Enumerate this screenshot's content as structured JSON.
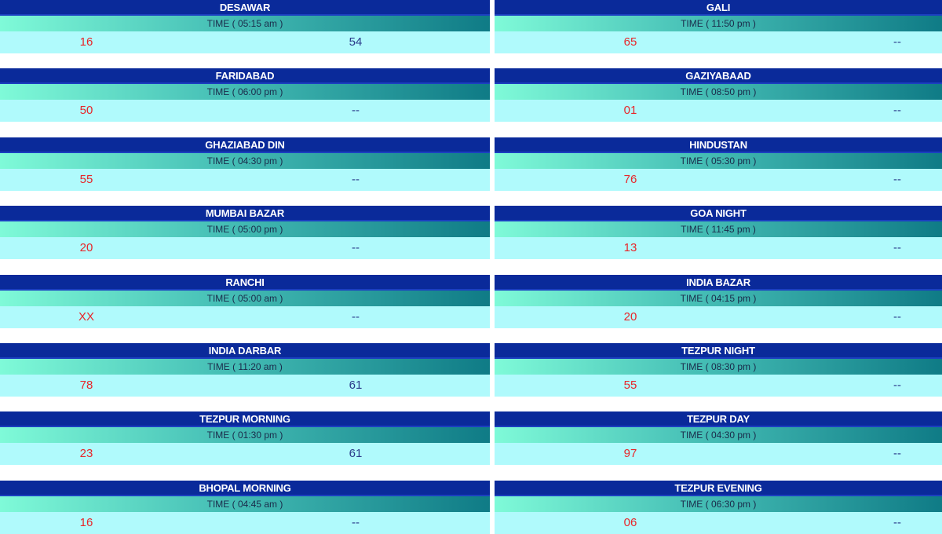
{
  "games": [
    {
      "name": "DESAWAR",
      "time": "TIME ( 05:15 am )",
      "old_result": "16",
      "new_result": "54"
    },
    {
      "name": "GALI",
      "time": "TIME ( 11:50 pm )",
      "old_result": "65",
      "new_result": "--"
    },
    {
      "name": "FARIDABAD",
      "time": "TIME ( 06:00 pm )",
      "old_result": "50",
      "new_result": "--"
    },
    {
      "name": "GAZIYABAAD",
      "time": "TIME ( 08:50 pm )",
      "old_result": "01",
      "new_result": "--"
    },
    {
      "name": "GHAZIABAD DIN",
      "time": "TIME ( 04:30 pm )",
      "old_result": "55",
      "new_result": "--"
    },
    {
      "name": "HINDUSTAN",
      "time": "TIME ( 05:30 pm )",
      "old_result": "76",
      "new_result": "--"
    },
    {
      "name": "MUMBAI BAZAR",
      "time": "TIME ( 05:00 pm )",
      "old_result": "20",
      "new_result": "--"
    },
    {
      "name": "GOA NIGHT",
      "time": "TIME ( 11:45 pm )",
      "old_result": "13",
      "new_result": "--"
    },
    {
      "name": "RANCHI",
      "time": "TIME ( 05:00 am )",
      "old_result": "XX",
      "new_result": "--"
    },
    {
      "name": "INDIA BAZAR",
      "time": "TIME ( 04:15 pm )",
      "old_result": "20",
      "new_result": "--"
    },
    {
      "name": "INDIA DARBAR",
      "time": "TIME ( 11:20 am )",
      "old_result": "78",
      "new_result": "61"
    },
    {
      "name": "TEZPUR NIGHT",
      "time": "TIME ( 08:30 pm )",
      "old_result": "55",
      "new_result": "--"
    },
    {
      "name": "TEZPUR MORNING",
      "time": "TIME ( 01:30 pm )",
      "old_result": "23",
      "new_result": "61"
    },
    {
      "name": "TEZPUR DAY",
      "time": "TIME ( 04:30 pm )",
      "old_result": "97",
      "new_result": "--"
    },
    {
      "name": "BHOPAL MORNING",
      "time": "TIME ( 04:45 am )",
      "old_result": "16",
      "new_result": "--"
    },
    {
      "name": "TEZPUR EVENING",
      "time": "TIME ( 06:30 pm )",
      "old_result": "06",
      "new_result": "--"
    }
  ],
  "colors": {
    "title_bar": "#0a2a9a",
    "time_bar_start": "#7ffad8",
    "time_bar_end": "#0f7b86",
    "result_bar": "#b0fafc",
    "old_result_text": "#e8262a",
    "new_result_text": "#2a3a8a"
  }
}
